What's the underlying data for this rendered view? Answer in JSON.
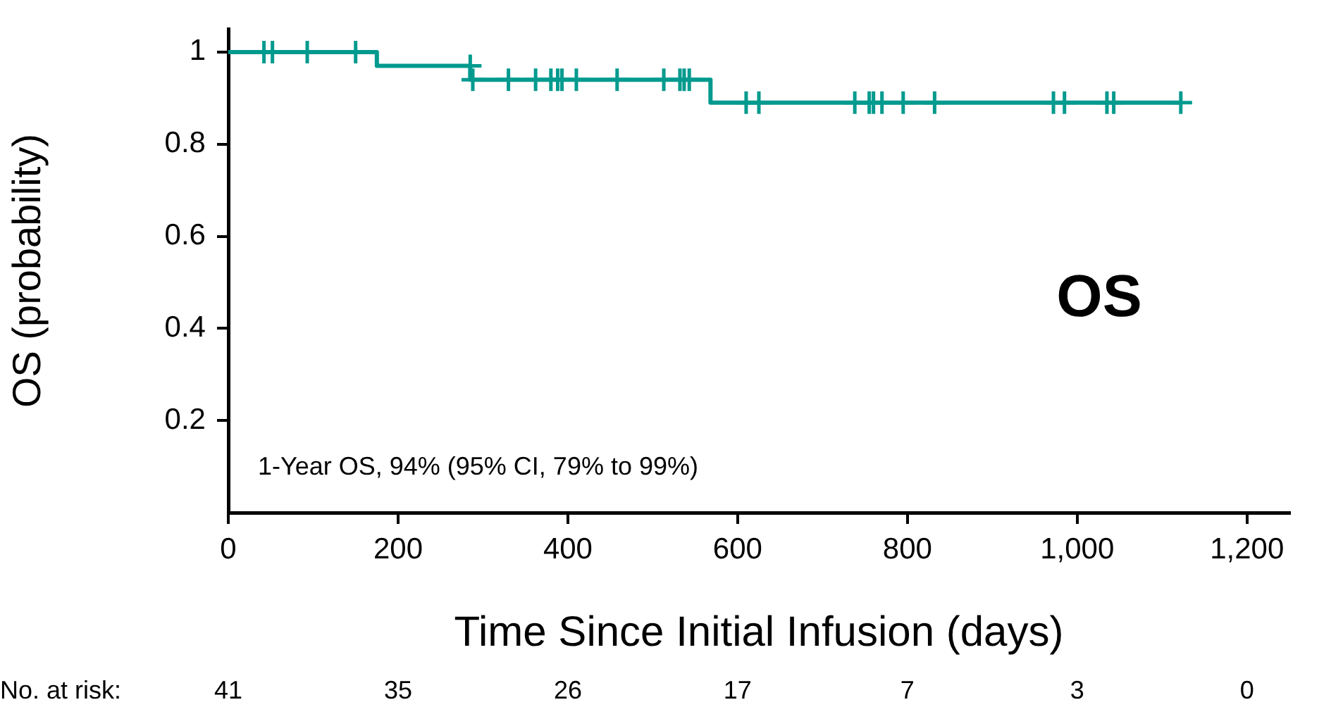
{
  "chart_data": {
    "type": "step",
    "xlabel": "Time Since Initial Infusion (days)",
    "ylabel": "OS (probability)",
    "xlim": [
      0,
      1250
    ],
    "xticks": [
      0,
      200,
      400,
      600,
      800,
      {
        "value": 1000,
        "label": "1,000"
      },
      {
        "value": 1200,
        "label": "1,200"
      }
    ],
    "ylim": [
      0,
      1.05
    ],
    "yticks": [
      0.2,
      0.4,
      0.6,
      0.8,
      1
    ],
    "grid": false,
    "legend": false,
    "line_style": "solid",
    "series": [
      {
        "color": "#009a8e",
        "x": [
          0,
          175,
          285,
          568,
          1122
        ],
        "values": [
          1,
          0.97,
          0.94,
          0.89,
          0.89
        ],
        "marker": "none"
      },
      {
        "type": "scatter",
        "color": "#009a8e",
        "marker": "cross",
        "x": [
          42,
          52,
          93,
          150,
          285,
          288,
          330,
          362,
          380,
          388,
          393,
          410,
          458,
          513,
          532,
          537,
          543,
          610,
          625,
          738,
          755,
          760,
          770,
          795,
          832,
          972,
          985,
          1035,
          1043,
          1122
        ],
        "values": [
          1,
          1,
          1,
          1,
          0.97,
          0.94,
          0.94,
          0.94,
          0.94,
          0.94,
          0.94,
          0.94,
          0.94,
          0.94,
          0.94,
          0.94,
          0.94,
          0.89,
          0.89,
          0.89,
          0.89,
          0.89,
          0.89,
          0.89,
          0.89,
          0.89,
          0.89,
          0.89,
          0.89,
          0.89
        ]
      }
    ],
    "annotations": [
      "1-Year OS, 94% (95% CI, 79% to 99%)",
      "OS",
      "No. at risk:",
      "41",
      "35",
      "26",
      "17",
      "7",
      "3",
      "0"
    ]
  }
}
